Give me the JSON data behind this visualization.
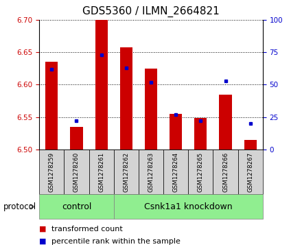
{
  "title": "GDS5360 / ILMN_2664821",
  "samples": [
    "GSM1278259",
    "GSM1278260",
    "GSM1278261",
    "GSM1278262",
    "GSM1278263",
    "GSM1278264",
    "GSM1278265",
    "GSM1278266",
    "GSM1278267"
  ],
  "bar_tops": [
    6.635,
    6.535,
    6.7,
    6.658,
    6.625,
    6.555,
    6.548,
    6.585,
    6.515
  ],
  "bar_base": 6.5,
  "percentile_values": [
    62,
    22,
    73,
    63,
    52,
    27,
    22,
    53,
    20
  ],
  "ylim_left": [
    6.5,
    6.7
  ],
  "ylim_right": [
    0,
    100
  ],
  "yticks_left": [
    6.5,
    6.55,
    6.6,
    6.65,
    6.7
  ],
  "yticks_right": [
    0,
    25,
    50,
    75,
    100
  ],
  "bar_color": "#cc0000",
  "blue_color": "#0000cc",
  "ctrl_count": 3,
  "knock_count": 6,
  "control_label": "control",
  "knockdown_label": "Csnk1a1 knockdown",
  "protocol_label": "protocol",
  "legend1": "transformed count",
  "legend2": "percentile rank within the sample",
  "group_color": "#90ee90",
  "cell_bg_color": "#d3d3d3",
  "title_fontsize": 11,
  "tick_fontsize": 7.5,
  "group_fontsize": 9,
  "legend_fontsize": 8
}
